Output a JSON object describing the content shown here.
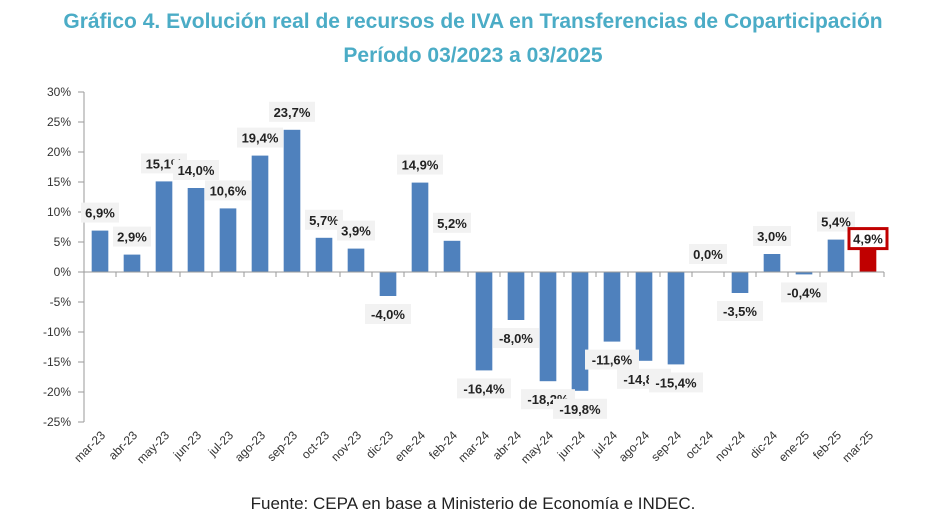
{
  "chart_data": {
    "type": "bar",
    "title": "Gráfico 4. Evolución real de recursos de IVA en Transferencias de Coparticipación",
    "subtitle": "Período 03/2023 a 03/2025",
    "source": "Fuente: CEPA en base a Ministerio de Economía e INDEC.",
    "categories": [
      "mar-23",
      "abr-23",
      "may-23",
      "jun-23",
      "jul-23",
      "ago-23",
      "sep-23",
      "oct-23",
      "nov-23",
      "dic-23",
      "ene-24",
      "feb-24",
      "mar-24",
      "abr-24",
      "may-24",
      "jun-24",
      "jul-24",
      "ago-24",
      "sep-24",
      "oct-24",
      "nov-24",
      "dic-24",
      "ene-25",
      "feb-25",
      "mar-25"
    ],
    "values": [
      6.9,
      2.9,
      15.1,
      14.0,
      10.6,
      19.4,
      23.7,
      5.7,
      3.9,
      -4.0,
      14.9,
      5.2,
      -16.4,
      -8.0,
      -18.2,
      -19.8,
      -11.6,
      -14.8,
      -15.4,
      0.0,
      -3.5,
      3.0,
      -0.4,
      5.4,
      4.9
    ],
    "labels": [
      "6,9%",
      "2,9%",
      "15,1%",
      "14,0%",
      "10,6%",
      "19,4%",
      "23,7%",
      "5,7%",
      "3,9%",
      "-4,0%",
      "14,9%",
      "5,2%",
      "-16,4%",
      "-8,0%",
      "-18,2%",
      "-19,8%",
      "-11,6%",
      "-14,8%",
      "-15,4%",
      "0,0%",
      "-3,5%",
      "3,0%",
      "-0,4%",
      "5,4%",
      "4,9%"
    ],
    "ylim": [
      -25,
      30
    ],
    "yticks": [
      30,
      25,
      20,
      15,
      10,
      5,
      0,
      -5,
      -10,
      -15,
      -20,
      -25
    ],
    "ytick_labels": [
      "30%",
      "25%",
      "20%",
      "15%",
      "10%",
      "5%",
      "0%",
      "-5%",
      "-10%",
      "-15%",
      "-20%",
      "-25%"
    ],
    "xlabel": "",
    "ylabel": "",
    "bar_color": "#4F81BD",
    "highlight_color": "#C00000",
    "highlight_index": 24,
    "grid": false
  }
}
